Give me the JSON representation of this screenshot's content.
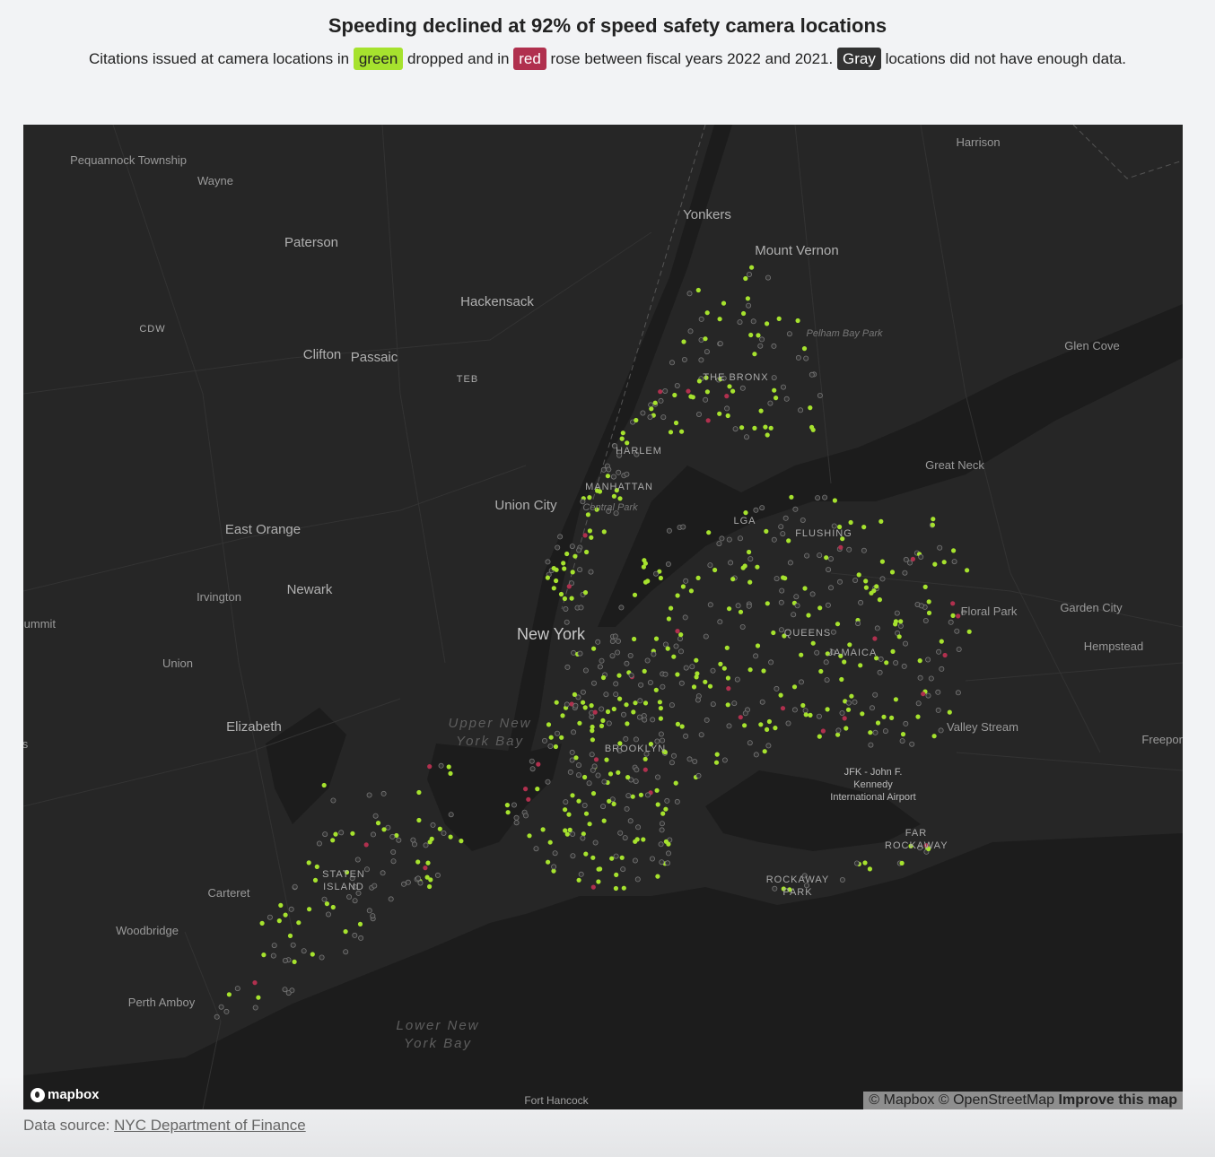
{
  "header": {
    "title": "Speeding declined at 92% of speed safety camera locations",
    "subtitle_part1": "Citations issued at camera locations in",
    "chip_green": "green",
    "subtitle_part2": "dropped and in",
    "chip_red": "red",
    "subtitle_part3": "rose between fiscal years 2022 and 2021.",
    "chip_gray": "Gray",
    "subtitle_part4": "locations did not have enough data."
  },
  "legend_colors": {
    "green": "#a6e22e",
    "red": "#b0304e",
    "gray": "#333333"
  },
  "map": {
    "labels": [
      "Pequannock Township",
      "Wayne",
      "Paterson",
      "Hackensack",
      "Yonkers",
      "Mount Vernon",
      "Harrison",
      "CDW",
      "Clifton",
      "Passaic",
      "TEB",
      "Pelham Bay Park",
      "Glen Cove",
      "THE BRONX",
      "HARLEM",
      "Great Neck",
      "MANHATTAN",
      "Central Park",
      "Union City",
      "LGA",
      "FLUSHING",
      "East Orange",
      "Irvington",
      "Newark",
      "Summit",
      "Floral Park",
      "Garden City",
      "Hempstead",
      "New York",
      "QUEENS",
      "JAMAICA",
      "Union",
      "Elizabeth",
      "Upper New York Bay",
      "BROOKLYN",
      "Valley Stream",
      "Freeport",
      "JFK - John F. Kennedy International Airport",
      "FAR ROCKAWAY",
      "STATEN ISLAND",
      "Carteret",
      "ROCKAWAY PARK",
      "Woodbridge",
      "Perth Amboy",
      "Lower New York Bay",
      "Fort Hancock",
      "s"
    ],
    "logo": "mapbox",
    "attribution_mapbox": "© Mapbox",
    "attribution_osm": "© OpenStreetMap",
    "improve_link": "Improve this map"
  },
  "footer": {
    "source_label": "Data source:",
    "source_link": "NYC Department of Finance"
  }
}
